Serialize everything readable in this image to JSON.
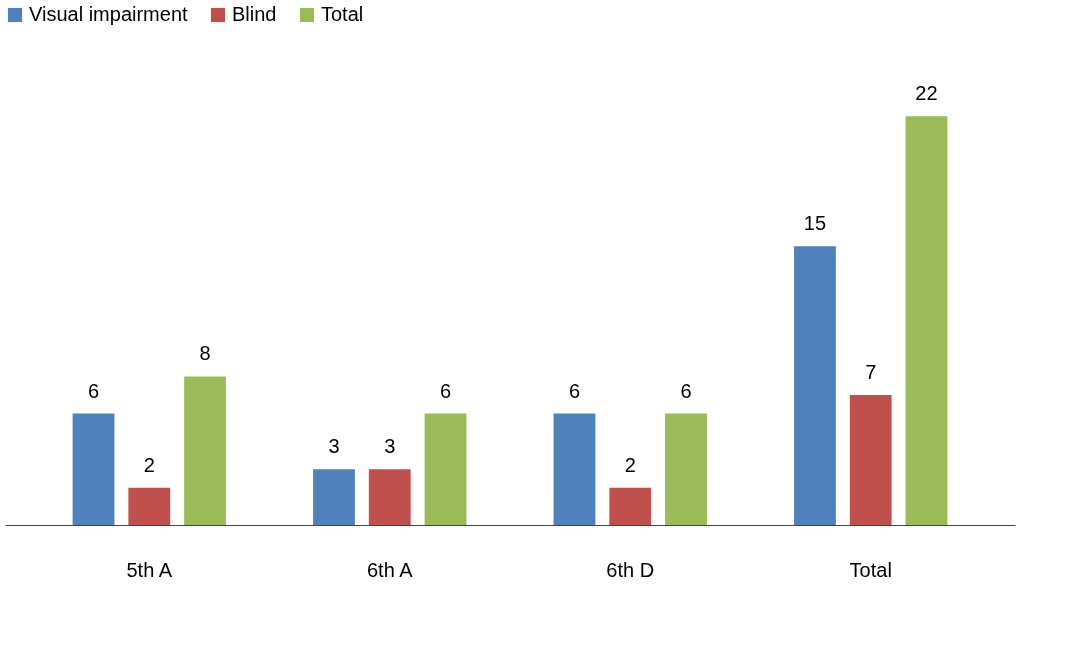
{
  "chart_data": {
    "type": "bar",
    "categories": [
      "5th A",
      "6th A",
      "6th D",
      "Total"
    ],
    "series": [
      {
        "name": "Visual impairment",
        "color": "#4f81bd",
        "values": [
          6,
          3,
          6,
          15
        ]
      },
      {
        "name": "Blind",
        "color": "#c0504d",
        "values": [
          2,
          3,
          2,
          7
        ]
      },
      {
        "name": "Total",
        "color": "#9bbb59",
        "values": [
          8,
          6,
          6,
          22
        ]
      }
    ],
    "data_labels": true,
    "legend": "top",
    "grid": false
  }
}
